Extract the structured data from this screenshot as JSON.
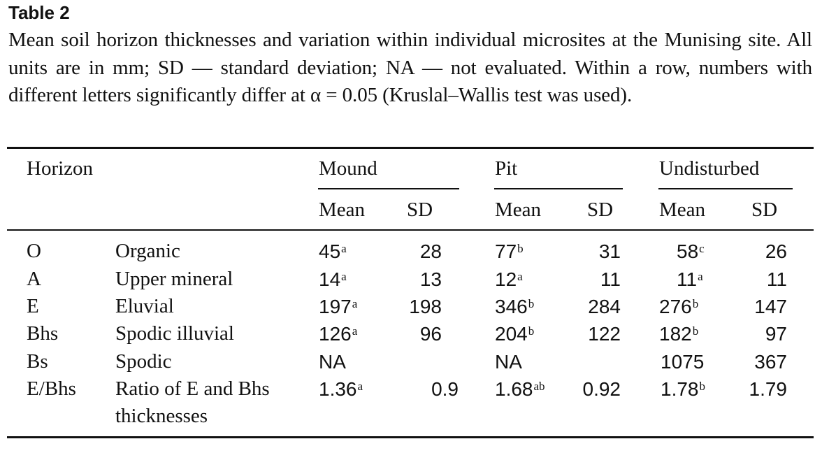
{
  "table_label": "Table 2",
  "caption": "Mean soil horizon thicknesses and variation within individual microsites at the Munising site. All units are in mm; SD — standard deviation; NA — not evaluated. Within a row, numbers with different letters significantly differ at α = 0.05 (Kruslal–Wallis test was used).",
  "header": {
    "horizon": "Horizon",
    "groups": [
      "Mound",
      "Pit",
      "Undisturbed"
    ],
    "mean": "Mean",
    "sd": "SD"
  },
  "rows": [
    {
      "code": "O",
      "desc": "Organic",
      "desc2": "",
      "mound_mean": "45",
      "mound_sig": "a",
      "mound_sd": "28",
      "pit_mean": "77",
      "pit_sig": "b",
      "pit_sd": "31",
      "und_mean": "58",
      "und_sig": "c",
      "und_sd": "26"
    },
    {
      "code": "A",
      "desc": "Upper mineral",
      "desc2": "",
      "mound_mean": "14",
      "mound_sig": "a",
      "mound_sd": "13",
      "pit_mean": "12",
      "pit_sig": "a",
      "pit_sd": "11",
      "und_mean": "11",
      "und_sig": "a",
      "und_sd": "11"
    },
    {
      "code": "E",
      "desc": "Eluvial",
      "desc2": "",
      "mound_mean": "197",
      "mound_sig": "a",
      "mound_sd": "198",
      "pit_mean": "346",
      "pit_sig": "b",
      "pit_sd": "284",
      "und_mean": "276",
      "und_sig": "b",
      "und_sd": "147"
    },
    {
      "code": "Bhs",
      "desc": "Spodic illuvial",
      "desc2": "",
      "mound_mean": "126",
      "mound_sig": "a",
      "mound_sd": "96",
      "pit_mean": "204",
      "pit_sig": "b",
      "pit_sd": "122",
      "und_mean": "182",
      "und_sig": "b",
      "und_sd": "97"
    },
    {
      "code": "Bs",
      "desc": "Spodic",
      "desc2": "",
      "mound_mean": "NA",
      "mound_sig": "",
      "mound_sd": "",
      "pit_mean": "NA",
      "pit_sig": "",
      "pit_sd": "",
      "und_mean": "1075",
      "und_sig": "",
      "und_sd": "367"
    },
    {
      "code": "E/Bhs",
      "desc": "Ratio of E and Bhs",
      "desc2": "thicknesses",
      "mound_mean": "1.36",
      "mound_sig": "a",
      "mound_sd": "0.9",
      "pit_mean": "1.68",
      "pit_sig": "ab",
      "pit_sd": "0.92",
      "und_mean": "1.78",
      "und_sig": "b",
      "und_sd": "1.79"
    }
  ]
}
